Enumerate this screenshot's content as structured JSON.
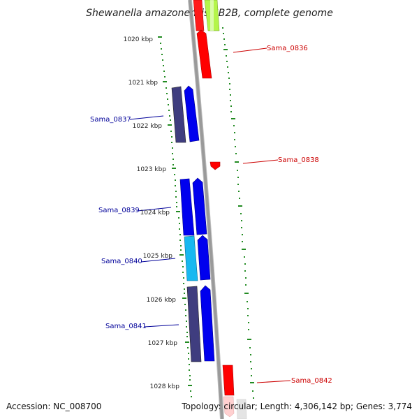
{
  "title": "Shewanella amazonensis SB2B, complete genome",
  "footer": {
    "accession": "Accession: NC_008700",
    "summary": "Topology: circular; Length: 4,306,142 bp; Genes: 3,774"
  },
  "scale_labels": [
    "1020 kbp",
    "1021 kbp",
    "1022 kbp",
    "1023 kbp",
    "1024 kbp",
    "1025 kbp",
    "1026 kbp",
    "1027 kbp",
    "1028 kbp"
  ],
  "gene_labels": {
    "sama_0836": "Sama_0836",
    "sama_0837": "Sama_0837",
    "sama_0838": "Sama_0838",
    "sama_0839": "Sama_0839",
    "sama_0840": "Sama_0840",
    "sama_0841": "Sama_0841",
    "sama_0842": "Sama_0842"
  },
  "colors": {
    "forward_label": "#cc0000",
    "reverse_label": "#000099",
    "backbone": "#888888",
    "ticks": "#228b22",
    "red": "#ff0000",
    "blue": "#0000ee",
    "navy": "#3f3d7f",
    "cyan": "#18b8f0",
    "lime": "#aaf03a"
  }
}
